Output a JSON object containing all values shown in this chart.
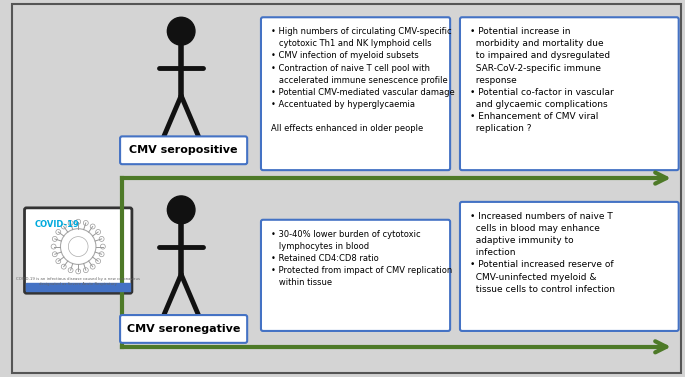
{
  "bg_color": "#d4d4d4",
  "box_border_color": "#4472c4",
  "arrow_color": "#4e7a28",
  "person_color": "#111111",
  "seropositive_label": "CMV seropositive",
  "seronegative_label": "CMV seronegative",
  "covid19_label": "COVID-19",
  "upper_bullets": "• High numbers of circulating CMV-specific\n   cytotoxic Th1 and NK lymphoid cells\n• CMV infection of myeloid subsets\n• Contraction of naive T cell pool with\n   accelerated immune senescence profile\n• Potential CMV-mediated vascular damage\n• Accentuated by hyperglycaemia\n\nAll effects enhanced in older people",
  "upper_outcomes": "• Potential increase in\n  morbidity and mortality due\n  to impaired and dysregulated\n  SAR-CoV-2-specific immune\n  response\n• Potential co-factor in vascular\n  and glycaemic complications\n• Enhancement of CMV viral\n  replication ?",
  "lower_bullets": "• 30-40% lower burden of cytotoxic\n   lymphocytes in blood\n• Retained CD4:CD8 ratio\n• Protected from impact of CMV replication\n   within tissue",
  "lower_outcomes": "• Increased numbers of naive T\n  cells in blood may enhance\n  adaptive immunity to\n  infection\n• Potential increased reserve of\n  CMV-uninfected myeloid &\n  tissue cells to control infection",
  "figsize": [
    6.85,
    3.77
  ],
  "dpi": 100
}
